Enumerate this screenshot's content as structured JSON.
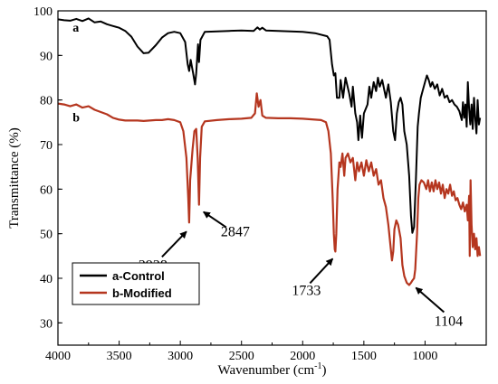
{
  "chart_data": {
    "type": "line",
    "title": "",
    "xlabel": "Wavenumber (cm",
    "xlabel_sup": "-1",
    "xlabel_close": ")",
    "ylabel": "Transmittance (%)",
    "xlim": [
      4000,
      500
    ],
    "ylim": [
      25,
      100
    ],
    "x_ticks": [
      4000,
      3500,
      3000,
      2500,
      2000,
      1500,
      1000
    ],
    "y_ticks": [
      30,
      40,
      50,
      60,
      70,
      80,
      90,
      100
    ],
    "grid": false,
    "legend_position": "bottom-left",
    "series": [
      {
        "name": "a-Control",
        "curve_label": "a",
        "color": "#000000",
        "points": [
          [
            4000,
            98.1
          ],
          [
            3950,
            97.9
          ],
          [
            3900,
            97.8
          ],
          [
            3850,
            98.2
          ],
          [
            3800,
            97.7
          ],
          [
            3750,
            98.3
          ],
          [
            3700,
            97.4
          ],
          [
            3650,
            97.6
          ],
          [
            3600,
            97.0
          ],
          [
            3550,
            96.6
          ],
          [
            3500,
            96.2
          ],
          [
            3450,
            95.5
          ],
          [
            3400,
            94.2
          ],
          [
            3350,
            92.0
          ],
          [
            3300,
            90.5
          ],
          [
            3260,
            90.6
          ],
          [
            3200,
            92.3
          ],
          [
            3150,
            94.0
          ],
          [
            3100,
            95.0
          ],
          [
            3050,
            95.3
          ],
          [
            3000,
            95.0
          ],
          [
            2960,
            93.0
          ],
          [
            2940,
            88.0
          ],
          [
            2928,
            86.5
          ],
          [
            2915,
            89.0
          ],
          [
            2895,
            86.0
          ],
          [
            2880,
            83.5
          ],
          [
            2870,
            86.0
          ],
          [
            2855,
            92.5
          ],
          [
            2847,
            88.5
          ],
          [
            2835,
            93.5
          ],
          [
            2800,
            95.3
          ],
          [
            2700,
            95.4
          ],
          [
            2600,
            95.5
          ],
          [
            2500,
            95.6
          ],
          [
            2400,
            95.5
          ],
          [
            2370,
            96.3
          ],
          [
            2350,
            95.8
          ],
          [
            2330,
            96.2
          ],
          [
            2300,
            95.6
          ],
          [
            2200,
            95.5
          ],
          [
            2100,
            95.4
          ],
          [
            2000,
            95.3
          ],
          [
            1900,
            95.0
          ],
          [
            1800,
            94.3
          ],
          [
            1780,
            93.5
          ],
          [
            1760,
            88.0
          ],
          [
            1745,
            85.5
          ],
          [
            1733,
            86.0
          ],
          [
            1720,
            80.5
          ],
          [
            1700,
            80.5
          ],
          [
            1690,
            84.5
          ],
          [
            1670,
            80.5
          ],
          [
            1650,
            85.0
          ],
          [
            1620,
            81.5
          ],
          [
            1600,
            78.5
          ],
          [
            1590,
            83.0
          ],
          [
            1570,
            77.0
          ],
          [
            1555,
            75.0
          ],
          [
            1545,
            71.0
          ],
          [
            1530,
            76.5
          ],
          [
            1515,
            71.5
          ],
          [
            1500,
            77.0
          ],
          [
            1470,
            79.0
          ],
          [
            1455,
            83.0
          ],
          [
            1440,
            80.5
          ],
          [
            1420,
            84.0
          ],
          [
            1400,
            82.0
          ],
          [
            1385,
            85.0
          ],
          [
            1370,
            83.0
          ],
          [
            1350,
            84.5
          ],
          [
            1320,
            80.5
          ],
          [
            1300,
            83.5
          ],
          [
            1280,
            79.5
          ],
          [
            1260,
            73.0
          ],
          [
            1245,
            71.0
          ],
          [
            1230,
            77.0
          ],
          [
            1215,
            79.5
          ],
          [
            1200,
            80.5
          ],
          [
            1185,
            79.0
          ],
          [
            1170,
            73.0
          ],
          [
            1150,
            70.0
          ],
          [
            1130,
            63.0
          ],
          [
            1115,
            54.0
          ],
          [
            1104,
            50.2
          ],
          [
            1090,
            51.5
          ],
          [
            1075,
            62.0
          ],
          [
            1060,
            74.0
          ],
          [
            1050,
            77.0
          ],
          [
            1035,
            80.5
          ],
          [
            1020,
            82.0
          ],
          [
            1000,
            84.0
          ],
          [
            985,
            85.5
          ],
          [
            970,
            84.5
          ],
          [
            955,
            83.0
          ],
          [
            940,
            84.0
          ],
          [
            920,
            82.5
          ],
          [
            900,
            83.5
          ],
          [
            880,
            81.0
          ],
          [
            860,
            82.5
          ],
          [
            840,
            80.5
          ],
          [
            820,
            81.0
          ],
          [
            800,
            79.5
          ],
          [
            780,
            80.0
          ],
          [
            760,
            79.0
          ],
          [
            740,
            78.5
          ],
          [
            720,
            77.5
          ],
          [
            700,
            75.5
          ],
          [
            690,
            79.5
          ],
          [
            680,
            76.0
          ],
          [
            670,
            79.0
          ],
          [
            660,
            74.0
          ],
          [
            650,
            84.0
          ],
          [
            640,
            78.0
          ],
          [
            630,
            74.5
          ],
          [
            620,
            79.0
          ],
          [
            610,
            73.5
          ],
          [
            600,
            80.5
          ],
          [
            590,
            76.0
          ],
          [
            580,
            72.5
          ],
          [
            570,
            80.0
          ],
          [
            560,
            74.5
          ],
          [
            550,
            76.0
          ]
        ]
      },
      {
        "name": "b-Modified",
        "curve_label": "b",
        "color": "#b5361f",
        "points": [
          [
            4000,
            79.2
          ],
          [
            3950,
            79.0
          ],
          [
            3900,
            78.6
          ],
          [
            3850,
            79.0
          ],
          [
            3800,
            78.3
          ],
          [
            3750,
            78.6
          ],
          [
            3700,
            77.8
          ],
          [
            3650,
            77.3
          ],
          [
            3600,
            76.8
          ],
          [
            3550,
            76.0
          ],
          [
            3500,
            75.6
          ],
          [
            3450,
            75.4
          ],
          [
            3400,
            75.4
          ],
          [
            3350,
            75.4
          ],
          [
            3300,
            75.3
          ],
          [
            3250,
            75.4
          ],
          [
            3200,
            75.5
          ],
          [
            3150,
            75.5
          ],
          [
            3100,
            75.7
          ],
          [
            3050,
            75.5
          ],
          [
            3000,
            75.0
          ],
          [
            2975,
            73.0
          ],
          [
            2950,
            67.0
          ],
          [
            2935,
            58.0
          ],
          [
            2928,
            52.5
          ],
          [
            2920,
            62.0
          ],
          [
            2900,
            69.0
          ],
          [
            2885,
            73.0
          ],
          [
            2870,
            73.5
          ],
          [
            2858,
            67.0
          ],
          [
            2847,
            56.5
          ],
          [
            2838,
            67.0
          ],
          [
            2825,
            74.0
          ],
          [
            2800,
            75.2
          ],
          [
            2700,
            75.5
          ],
          [
            2600,
            75.7
          ],
          [
            2500,
            75.8
          ],
          [
            2420,
            76.0
          ],
          [
            2390,
            77.0
          ],
          [
            2375,
            81.5
          ],
          [
            2360,
            78.5
          ],
          [
            2345,
            80.0
          ],
          [
            2330,
            76.5
          ],
          [
            2300,
            76.0
          ],
          [
            2200,
            75.9
          ],
          [
            2100,
            75.9
          ],
          [
            2000,
            75.8
          ],
          [
            1900,
            75.6
          ],
          [
            1850,
            75.5
          ],
          [
            1810,
            75.0
          ],
          [
            1790,
            73.0
          ],
          [
            1770,
            68.0
          ],
          [
            1755,
            58.0
          ],
          [
            1745,
            50.0
          ],
          [
            1738,
            46.5
          ],
          [
            1733,
            46.0
          ],
          [
            1725,
            50.0
          ],
          [
            1715,
            60.0
          ],
          [
            1700,
            66.0
          ],
          [
            1690,
            65.0
          ],
          [
            1675,
            68.0
          ],
          [
            1660,
            63.0
          ],
          [
            1650,
            67.0
          ],
          [
            1630,
            68.0
          ],
          [
            1610,
            66.0
          ],
          [
            1590,
            67.0
          ],
          [
            1570,
            62.0
          ],
          [
            1555,
            66.0
          ],
          [
            1540,
            64.0
          ],
          [
            1520,
            66.0
          ],
          [
            1500,
            63.0
          ],
          [
            1480,
            66.5
          ],
          [
            1460,
            64.0
          ],
          [
            1440,
            66.0
          ],
          [
            1420,
            63.0
          ],
          [
            1400,
            64.5
          ],
          [
            1380,
            61.0
          ],
          [
            1360,
            62.0
          ],
          [
            1340,
            58.0
          ],
          [
            1320,
            56.0
          ],
          [
            1300,
            52.0
          ],
          [
            1285,
            48.0
          ],
          [
            1270,
            44.0
          ],
          [
            1260,
            46.0
          ],
          [
            1250,
            51.0
          ],
          [
            1235,
            53.0
          ],
          [
            1220,
            52.0
          ],
          [
            1200,
            49.0
          ],
          [
            1185,
            43.0
          ],
          [
            1170,
            40.5
          ],
          [
            1150,
            39.0
          ],
          [
            1130,
            38.5
          ],
          [
            1115,
            39.0
          ],
          [
            1104,
            39.5
          ],
          [
            1090,
            40.0
          ],
          [
            1080,
            42.0
          ],
          [
            1065,
            50.0
          ],
          [
            1055,
            58.0
          ],
          [
            1045,
            61.0
          ],
          [
            1030,
            62.0
          ],
          [
            1010,
            61.5
          ],
          [
            990,
            60.0
          ],
          [
            975,
            62.0
          ],
          [
            960,
            59.5
          ],
          [
            945,
            61.5
          ],
          [
            930,
            59.5
          ],
          [
            915,
            62.0
          ],
          [
            900,
            60.0
          ],
          [
            885,
            61.5
          ],
          [
            870,
            59.0
          ],
          [
            855,
            61.0
          ],
          [
            840,
            58.0
          ],
          [
            825,
            60.0
          ],
          [
            810,
            59.0
          ],
          [
            795,
            61.0
          ],
          [
            780,
            58.5
          ],
          [
            765,
            59.5
          ],
          [
            750,
            57.5
          ],
          [
            735,
            58.0
          ],
          [
            720,
            56.5
          ],
          [
            705,
            55.5
          ],
          [
            690,
            57.0
          ],
          [
            675,
            55.0
          ],
          [
            660,
            56.5
          ],
          [
            650,
            53.0
          ],
          [
            640,
            58.5
          ],
          [
            635,
            45.0
          ],
          [
            628,
            62.0
          ],
          [
            620,
            52.0
          ],
          [
            610,
            47.0
          ],
          [
            600,
            50.0
          ],
          [
            590,
            46.5
          ],
          [
            580,
            49.0
          ],
          [
            570,
            45.0
          ],
          [
            560,
            47.0
          ],
          [
            550,
            45.0
          ]
        ]
      }
    ],
    "annotations": [
      {
        "text": "2928",
        "x": 2928,
        "y": 52.5
      },
      {
        "text": "2847",
        "x": 2847,
        "y": 56.5
      },
      {
        "text": "1733",
        "x": 1733,
        "y": 46.0
      },
      {
        "text": "1104",
        "x": 1104,
        "y": 39.5
      }
    ]
  }
}
